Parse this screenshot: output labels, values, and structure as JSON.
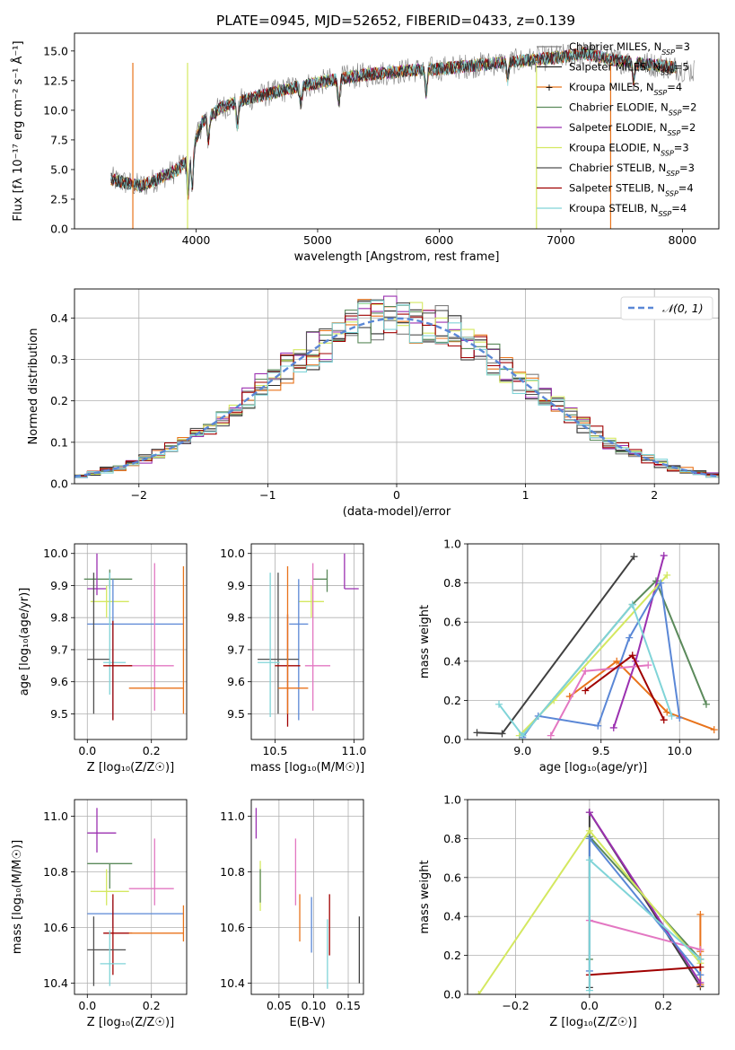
{
  "figure_title": "PLATE=0945, MJD=52652, FIBERID=0433, z=0.139",
  "colors": {
    "series": [
      "#7f7f7f",
      "#2b2b2b",
      "#e8731b",
      "#5b8a5b",
      "#9b30b0",
      "#d4e860",
      "#505050",
      "#a00000",
      "#80d4d8"
    ],
    "pink": "#e377c2",
    "blue": "#5a87d6",
    "gaussian": "#5a87d6",
    "grid": "#b0b0b0"
  },
  "chart_data": [
    {
      "type": "line",
      "id": "spectrum",
      "title": "PLATE=0945, MJD=52652, FIBERID=0433, z=0.139",
      "xlabel": "wavelength [Angstrom, rest frame]",
      "ylabel": "Flux [fλ 10⁻¹⁷ erg cm⁻² s⁻¹ Å⁻¹]",
      "xlim": [
        3000,
        8300
      ],
      "ylim": [
        0,
        16.5
      ],
      "xticks": [
        4000,
        5000,
        6000,
        7000,
        8000
      ],
      "yticks": [
        0.0,
        2.5,
        5.0,
        7.5,
        10.0,
        12.5,
        15.0
      ],
      "grid": false,
      "legend_position": "top-right",
      "continuum_x": [
        3300,
        3450,
        3550,
        3700,
        3850,
        3950,
        4050,
        4200,
        4400,
        4600,
        4800,
        5000,
        5200,
        5400,
        5600,
        5800,
        6000,
        6200,
        6400,
        6600,
        6800,
        7000,
        7200,
        7400,
        7600,
        7800,
        8000,
        8100
      ],
      "continuum_y": [
        4.2,
        3.8,
        3.6,
        4.3,
        5.0,
        6.0,
        9.0,
        10.2,
        10.9,
        11.4,
        11.9,
        12.3,
        12.7,
        13.0,
        13.2,
        13.4,
        13.5,
        13.7,
        13.9,
        14.1,
        14.3,
        14.5,
        14.8,
        14.3,
        14.0,
        13.8,
        13.5,
        13.3
      ],
      "series": [
        {
          "name": "Chabrier MILES, N_SSP=3"
        },
        {
          "name": "Salpeter MILES, N_SSP=5"
        },
        {
          "name": "Kroupa MILES, N_SSP=4"
        },
        {
          "name": "Chabrier ELODIE, N_SSP=2"
        },
        {
          "name": "Salpeter ELODIE, N_SSP=2"
        },
        {
          "name": "Kroupa ELODIE, N_SSP=3"
        },
        {
          "name": "Chabrier STELIB, N_SSP=3"
        },
        {
          "name": "Salpeter STELIB, N_SSP=4"
        },
        {
          "name": "Kroupa STELIB, N_SSP=4"
        }
      ],
      "legend_labels": [
        "Chabrier MILES, N",
        "Salpeter MILES, N",
        "Kroupa MILES, N",
        "Chabrier ELODIE, N",
        "Salpeter ELODIE, N",
        "Kroupa ELODIE, N",
        "Chabrier STELIB, N",
        "Salpeter STELIB, N",
        "Kroupa STELIB, N"
      ],
      "legend_sub": "SSP",
      "legend_values": [
        "=3",
        "=5",
        "=4",
        "=2",
        "=2",
        "=3",
        "=3",
        "=4",
        "=4"
      ]
    },
    {
      "type": "line",
      "id": "residuals",
      "xlabel": "(data-model)/error",
      "ylabel": "Normed distribution",
      "xlim": [
        -2.5,
        2.5
      ],
      "ylim": [
        0,
        0.47
      ],
      "xticks": [
        -2,
        -1,
        0,
        1,
        2
      ],
      "yticks": [
        0.0,
        0.1,
        0.2,
        0.3,
        0.4
      ],
      "grid": true,
      "legend_position": "top-right",
      "legend": "𝒩(0, 1)",
      "bin_edges_start": -2.5,
      "bin_width": 0.1,
      "gaussian": {
        "mean": 0,
        "sigma": 1
      }
    },
    {
      "type": "scatter",
      "id": "age-vs-Z",
      "xlabel": "Z [log₁₀(Z/Z☉)]",
      "ylabel": "age  [log₁₀(age/yr)]",
      "xlim": [
        -0.04,
        0.31
      ],
      "ylim": [
        9.42,
        10.03
      ],
      "xticks": [
        0.0,
        0.2
      ],
      "yticks": [
        9.5,
        9.6,
        9.7,
        9.8,
        9.9,
        10.0
      ],
      "grid": true,
      "points": [
        {
          "x": 0.07,
          "y": 9.92,
          "xerr": [
            0.08,
            0.07
          ],
          "yerr": [
            0.03,
            0.03
          ],
          "color": "#5b8a5b"
        },
        {
          "x": 0.03,
          "y": 9.89,
          "xerr": [
            0.03,
            0.03
          ],
          "yerr": [
            0.02,
            0.11
          ],
          "color": "#9b30b0"
        },
        {
          "x": 0.06,
          "y": 9.85,
          "xerr": [
            0.05,
            0.07
          ],
          "yerr": [
            0.05,
            0.05
          ],
          "color": "#d4e860"
        },
        {
          "x": 0.08,
          "y": 9.78,
          "xerr": [
            0.08,
            0.22
          ],
          "yerr": [
            0.3,
            0.14
          ],
          "color": "#5a87d6"
        },
        {
          "x": 0.02,
          "y": 9.67,
          "xerr": [
            0.02,
            0.05
          ],
          "yerr": [
            0.17,
            0.27
          ],
          "color": "#505050"
        },
        {
          "x": 0.07,
          "y": 9.66,
          "xerr": [
            0.02,
            0.05
          ],
          "yerr": [
            0.1,
            0.28
          ],
          "color": "#80d4d8"
        },
        {
          "x": 0.21,
          "y": 9.65,
          "xerr": [
            0.08,
            0.06
          ],
          "yerr": [
            0.14,
            0.32
          ],
          "color": "#e377c2"
        },
        {
          "x": 0.08,
          "y": 9.65,
          "xerr": [
            0.03,
            0.06
          ],
          "yerr": [
            0.17,
            0.14
          ],
          "color": "#a00000"
        },
        {
          "x": 0.3,
          "y": 9.58,
          "xerr": [
            0.17,
            0.0
          ],
          "yerr": [
            0.08,
            0.38
          ],
          "color": "#e8731b"
        }
      ]
    },
    {
      "type": "scatter",
      "id": "age-vs-mass",
      "xlabel": "mass [log₁₀(M/M☉)]",
      "xlim": [
        10.35,
        11.06
      ],
      "ylim": [
        9.42,
        10.03
      ],
      "xticks": [
        10.5,
        11.0
      ],
      "yticks": [
        9.5,
        9.6,
        9.7,
        9.8,
        9.9,
        10.0
      ],
      "grid": true,
      "points": [
        {
          "x": 10.83,
          "y": 9.92,
          "xerr": [
            0.09,
            0.0
          ],
          "yerr": [
            0.04,
            0.03
          ],
          "color": "#5b8a5b"
        },
        {
          "x": 10.94,
          "y": 9.89,
          "xerr": [
            0.0,
            0.09
          ],
          "yerr": [
            0.0,
            0.11
          ],
          "color": "#9b30b0"
        },
        {
          "x": 10.73,
          "y": 9.85,
          "xerr": [
            0.08,
            0.08
          ],
          "yerr": [
            0.05,
            0.05
          ],
          "color": "#d4e860"
        },
        {
          "x": 10.65,
          "y": 9.78,
          "xerr": [
            0.06,
            0.06
          ],
          "yerr": [
            0.3,
            0.14
          ],
          "color": "#5a87d6"
        },
        {
          "x": 10.52,
          "y": 9.67,
          "xerr": [
            0.13,
            0.13
          ],
          "yerr": [
            0.17,
            0.27
          ],
          "color": "#505050"
        },
        {
          "x": 10.47,
          "y": 9.66,
          "xerr": [
            0.08,
            0.06
          ],
          "yerr": [
            0.17,
            0.28
          ],
          "color": "#80d4d8"
        },
        {
          "x": 10.74,
          "y": 9.65,
          "xerr": [
            0.05,
            0.11
          ],
          "yerr": [
            0.14,
            0.32
          ],
          "color": "#e377c2"
        },
        {
          "x": 10.58,
          "y": 9.65,
          "xerr": [
            0.08,
            0.08
          ],
          "yerr": [
            0.19,
            0.16
          ],
          "color": "#a00000"
        },
        {
          "x": 10.58,
          "y": 9.58,
          "xerr": [
            0.06,
            0.13
          ],
          "yerr": [
            0.08,
            0.38
          ],
          "color": "#e8731b"
        }
      ]
    },
    {
      "type": "line",
      "id": "weight-vs-age",
      "xlabel": "age  [log₁₀(age/yr)]",
      "ylabel": "mass weight",
      "xlim": [
        8.65,
        10.25
      ],
      "ylim": [
        0,
        1.0
      ],
      "xticks": [
        9.0,
        9.5,
        10.0
      ],
      "yticks": [
        0.0,
        0.2,
        0.4,
        0.6,
        0.8,
        1.0
      ],
      "grid": true,
      "series": [
        {
          "x": [
            8.71,
            8.87,
            9.71
          ],
          "y": [
            0.035,
            0.03,
            0.935
          ],
          "color": "#404040"
        },
        {
          "x": [
            9.0,
            9.7,
            9.85,
            10.17
          ],
          "y": [
            0.02,
            0.69,
            0.81,
            0.18
          ],
          "color": "#5b8a5b"
        },
        {
          "x": [
            9.3,
            9.6,
            9.92,
            10.22
          ],
          "y": [
            0.22,
            0.4,
            0.14,
            0.05
          ],
          "color": "#e8731b"
        },
        {
          "x": [
            9.58,
            9.72,
            9.9
          ],
          "y": [
            0.06,
            0.4,
            0.94
          ],
          "color": "#9b30b0"
        },
        {
          "x": [
            9.18,
            9.4,
            9.8
          ],
          "y": [
            0.02,
            0.35,
            0.38
          ],
          "color": "#e377c2"
        },
        {
          "x": [
            8.98,
            9.2,
            9.92
          ],
          "y": [
            0.02,
            0.2,
            0.84
          ],
          "color": "#d4e860"
        },
        {
          "x": [
            9.0,
            9.1,
            9.48,
            9.68,
            9.88,
            10.0
          ],
          "y": [
            0.01,
            0.12,
            0.07,
            0.52,
            0.8,
            0.11
          ],
          "color": "#5a87d6"
        },
        {
          "x": [
            9.4,
            9.7,
            9.9
          ],
          "y": [
            0.25,
            0.43,
            0.1
          ],
          "color": "#a00000"
        },
        {
          "x": [
            8.85,
            9.0,
            9.7,
            9.95
          ],
          "y": [
            0.18,
            0.02,
            0.69,
            0.12
          ],
          "color": "#80d4d8"
        }
      ]
    },
    {
      "type": "scatter",
      "id": "mass-vs-Z",
      "xlabel": "Z [log₁₀(Z/Z☉)]",
      "ylabel": "mass [log₁₀(M/M☉)]",
      "xlim": [
        -0.04,
        0.31
      ],
      "ylim": [
        10.36,
        11.06
      ],
      "xticks": [
        0.0,
        0.2
      ],
      "yticks": [
        10.4,
        10.6,
        10.8,
        11.0
      ],
      "grid": true,
      "points": [
        {
          "x": 0.03,
          "y": 10.94,
          "xerr": [
            0.03,
            0.06
          ],
          "yerr": [
            0.07,
            0.09
          ],
          "color": "#9b30b0"
        },
        {
          "x": 0.07,
          "y": 10.83,
          "xerr": [
            0.07,
            0.07
          ],
          "yerr": [
            0.09,
            0.0
          ],
          "color": "#5b8a5b"
        },
        {
          "x": 0.21,
          "y": 10.74,
          "xerr": [
            0.08,
            0.06
          ],
          "yerr": [
            0.06,
            0.18
          ],
          "color": "#e377c2"
        },
        {
          "x": 0.06,
          "y": 10.73,
          "xerr": [
            0.05,
            0.07
          ],
          "yerr": [
            0.05,
            0.08
          ],
          "color": "#d4e860"
        },
        {
          "x": 0.08,
          "y": 10.65,
          "xerr": [
            0.08,
            0.22
          ],
          "yerr": [
            0.05,
            0.05
          ],
          "color": "#5a87d6"
        },
        {
          "x": 0.08,
          "y": 10.58,
          "xerr": [
            0.03,
            0.06
          ],
          "yerr": [
            0.15,
            0.14
          ],
          "color": "#a00000"
        },
        {
          "x": 0.3,
          "y": 10.58,
          "xerr": [
            0.17,
            0.0
          ],
          "yerr": [
            0.03,
            0.1
          ],
          "color": "#e8731b"
        },
        {
          "x": 0.02,
          "y": 10.52,
          "xerr": [
            0.02,
            0.1
          ],
          "yerr": [
            0.13,
            0.12
          ],
          "color": "#505050"
        },
        {
          "x": 0.07,
          "y": 10.47,
          "xerr": [
            0.03,
            0.05
          ],
          "yerr": [
            0.08,
            0.12
          ],
          "color": "#80d4d8"
        }
      ]
    },
    {
      "type": "scatter",
      "id": "mass-vs-ebv",
      "xlabel": "E(B-V)",
      "xlim": [
        0.01,
        0.172
      ],
      "ylim": [
        10.36,
        11.06
      ],
      "xticks": [
        0.05,
        0.1,
        0.15
      ],
      "yticks": [
        10.4,
        10.6,
        10.8,
        11.0
      ],
      "grid": true,
      "points": [
        {
          "x": 0.017,
          "y": 10.97,
          "yerr": [
            0.05,
            0.06
          ],
          "color": "#9b30b0"
        },
        {
          "x": 0.023,
          "y": 10.75,
          "yerr": [
            0.09,
            0.09
          ],
          "color": "#d4e860"
        },
        {
          "x": 0.023,
          "y": 10.75,
          "yerr": [
            0.06,
            0.06
          ],
          "color": "#5b8a5b"
        },
        {
          "x": 0.074,
          "y": 10.82,
          "yerr": [
            0.14,
            0.1
          ],
          "color": "#e377c2"
        },
        {
          "x": 0.08,
          "y": 10.62,
          "yerr": [
            0.07,
            0.1
          ],
          "color": "#e8731b"
        },
        {
          "x": 0.097,
          "y": 10.61,
          "yerr": [
            0.1,
            0.1
          ],
          "color": "#5a87d6"
        },
        {
          "x": 0.12,
          "y": 10.51,
          "yerr": [
            0.13,
            0.12
          ],
          "color": "#80d4d8"
        },
        {
          "x": 0.123,
          "y": 10.61,
          "yerr": [
            0.11,
            0.11
          ],
          "color": "#a00000"
        },
        {
          "x": 0.166,
          "y": 10.52,
          "yerr": [
            0.12,
            0.12
          ],
          "color": "#404040"
        }
      ]
    },
    {
      "type": "line",
      "id": "weight-vs-Z",
      "xlabel": "Z [log₁₀(Z/Z☉)]",
      "ylabel": "mass weight",
      "xlim": [
        -0.33,
        0.35
      ],
      "ylim": [
        0,
        1.0
      ],
      "xticks": [
        -0.2,
        0.0,
        0.2
      ],
      "yticks": [
        0.0,
        0.2,
        0.4,
        0.6,
        0.8,
        1.0
      ],
      "grid": true,
      "series": [
        {
          "x": [
            0.0,
            0.0,
            0.3
          ],
          "y": [
            0.035,
            0.935,
            0.04
          ],
          "color": "#404040"
        },
        {
          "x": [
            0.0,
            0.0,
            0.3
          ],
          "y": [
            0.18,
            0.81,
            0.18
          ],
          "color": "#5b8a5b"
        },
        {
          "x": [
            0.3,
            0.3,
            0.3
          ],
          "y": [
            0.05,
            0.22,
            0.41
          ],
          "color": "#e8731b"
        },
        {
          "x": [
            0.0,
            0.3
          ],
          "y": [
            0.935,
            0.06
          ],
          "color": "#9b30b0"
        },
        {
          "x": [
            0.0,
            0.3
          ],
          "y": [
            0.38,
            0.23
          ],
          "color": "#e377c2"
        },
        {
          "x": [
            -0.3,
            0.0,
            0.3
          ],
          "y": [
            0.0,
            0.84,
            0.16
          ],
          "color": "#d4e860"
        },
        {
          "x": [
            0.0,
            0.0,
            0.3
          ],
          "y": [
            0.12,
            0.8,
            0.1
          ],
          "color": "#5a87d6"
        },
        {
          "x": [
            0.0,
            0.3
          ],
          "y": [
            0.1,
            0.14
          ],
          "color": "#a00000"
        },
        {
          "x": [
            0.0,
            0.0,
            0.3
          ],
          "y": [
            0.02,
            0.69,
            0.18
          ],
          "color": "#80d4d8"
        }
      ]
    }
  ]
}
